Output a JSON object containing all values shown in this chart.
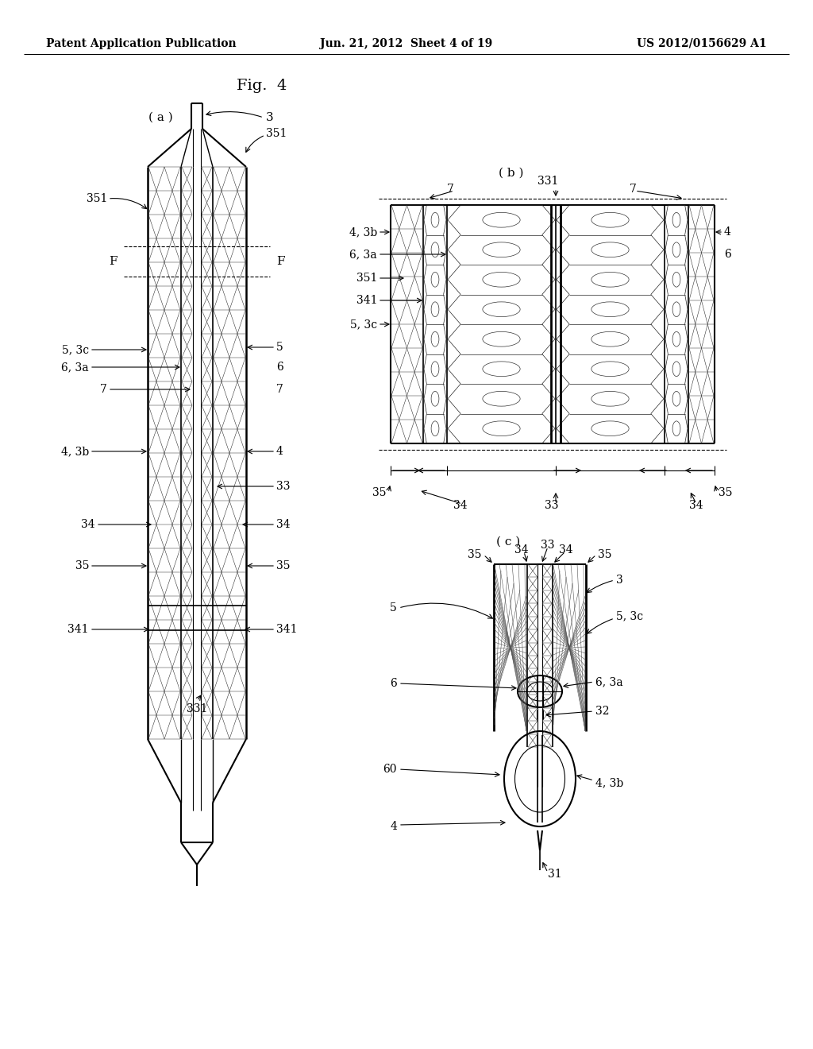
{
  "bg_color": "#ffffff",
  "header_left": "Patent Application Publication",
  "header_center": "Jun. 21, 2012  Sheet 4 of 19",
  "header_right": "US 2012/0156629 A1",
  "fig_label": "Fig.  4",
  "sub_a": "( a )",
  "sub_b": "( b )",
  "sub_c": "( c )"
}
